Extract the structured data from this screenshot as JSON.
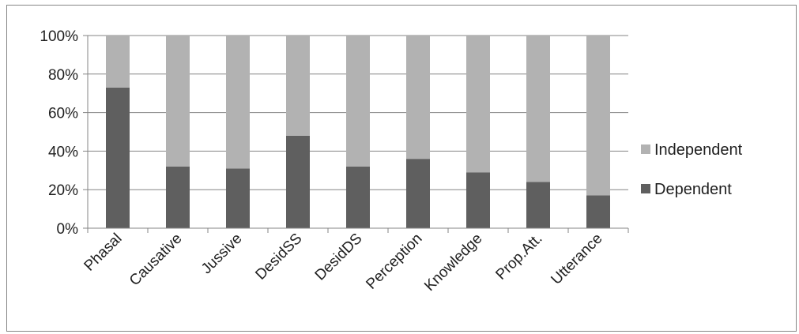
{
  "chart_data": {
    "type": "bar",
    "stacked": true,
    "percent": true,
    "title": "",
    "xlabel": "",
    "ylabel": "",
    "ylim": [
      0,
      100
    ],
    "yticks": [
      "0%",
      "20%",
      "40%",
      "60%",
      "80%",
      "100%"
    ],
    "yticks_values": [
      0,
      20,
      40,
      60,
      80,
      100
    ],
    "grid": "horizontal",
    "legend_position": "right",
    "categories": [
      "Phasal",
      "Causative",
      "Jussive",
      "DesidSS",
      "DesidDS",
      "Perception",
      "Knowledge",
      "Prop.Att.",
      "Utterance"
    ],
    "series": [
      {
        "name": "Dependent",
        "color": "#5f5f5f",
        "values": [
          73,
          32,
          31,
          48,
          32,
          36,
          29,
          24,
          17
        ]
      },
      {
        "name": "Independent",
        "color": "#b2b2b2",
        "values": [
          27,
          68,
          69,
          52,
          68,
          64,
          71,
          76,
          83
        ]
      }
    ],
    "legend": [
      "Independent",
      "Dependent"
    ]
  }
}
